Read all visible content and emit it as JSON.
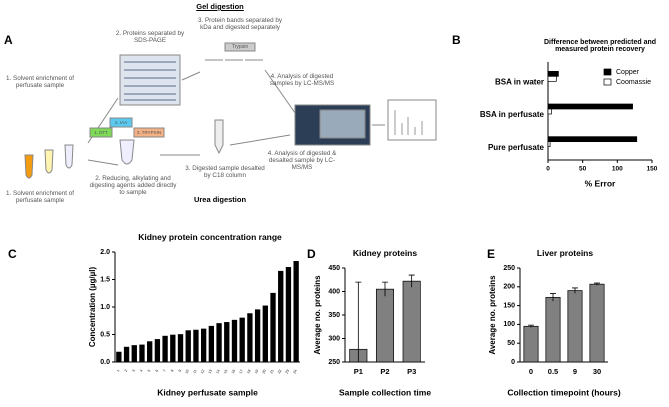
{
  "diagram": {
    "panel": "A",
    "gel_title": "Gel digestion",
    "urea_title": "Urea digestion",
    "gel_step1": "1. Solvent enrichment of perfusate sample",
    "gel_step2": "2. Proteins separated by SDS-PAGE",
    "gel_step3": "3. Protein bands separated by kDa and digested separately",
    "trypsin": "Trypsin",
    "gel_step4": "4. Analysis of digested samples by LC-MS/MS",
    "urea_step1": "1. Solvent enrichment of perfusate sample",
    "urea_step2": "2. Reducing, alkylating and digesting agents added directly to sample",
    "reagents": [
      "1. DTT",
      "2. IAA",
      "3. TRYPSIN"
    ],
    "urea_step3": "3. Digested sample desalted by C18 column",
    "urea_step4": "4. Analysis of digested & desalted sample by LC-MS/MS"
  },
  "chart_data": [
    {
      "type": "hbar",
      "panel": "B",
      "title": "Difference between predicted and measured protein recovery",
      "x_label": "% Error",
      "categories": [
        "BSA in water",
        "BSA in perfusate",
        "Pure perfusate"
      ],
      "series": [
        {
          "name": "Copper",
          "color": "#000000",
          "values": [
            15,
            122,
            128
          ]
        },
        {
          "name": "Coomassie",
          "color": "#ffffff",
          "values": [
            12,
            5,
            3
          ]
        }
      ],
      "xlim": [
        0,
        150
      ],
      "xticks": [
        0,
        50,
        100,
        150
      ],
      "legend": "top-right"
    },
    {
      "type": "bar",
      "panel": "C",
      "title": "Kidney protein concentration range",
      "y_label": "Concentration (µg/µl)",
      "x_label": "Kidney perfusate sample",
      "categories": [
        "1",
        "2",
        "3",
        "4",
        "5",
        "6",
        "7",
        "8",
        "9",
        "10",
        "11",
        "12",
        "13",
        "14",
        "15",
        "16",
        "17",
        "18",
        "19",
        "20",
        "21",
        "22",
        "23",
        "24"
      ],
      "values": [
        0.18,
        0.27,
        0.3,
        0.31,
        0.37,
        0.41,
        0.47,
        0.49,
        0.5,
        0.57,
        0.58,
        0.6,
        0.65,
        0.7,
        0.72,
        0.76,
        0.8,
        0.88,
        0.95,
        1.02,
        1.25,
        1.65,
        1.72,
        1.83
      ],
      "color": "#000000",
      "ylim": [
        0,
        2
      ],
      "yticks": [
        {
          "value": 0,
          "label": "0.0"
        },
        {
          "value": 0.5,
          "label": "0.5"
        },
        {
          "value": 1,
          "label": "1.0"
        },
        {
          "value": 1.5,
          "label": "1.5"
        },
        {
          "value": 2,
          "label": "2.0"
        }
      ]
    },
    {
      "type": "bar",
      "panel": "D",
      "title": "Kidney proteins",
      "y_label": "Average no. proteins",
      "x_label": "Sample collection time",
      "categories": [
        "P1",
        "P2",
        "P3"
      ],
      "values": [
        277,
        405,
        422
      ],
      "errors": [
        143,
        15,
        13
      ],
      "color": "#808080",
      "ylim": [
        250,
        450
      ],
      "yticks": [
        250,
        300,
        350,
        400,
        450
      ]
    },
    {
      "type": "bar",
      "panel": "E",
      "title": "Liver proteins",
      "y_label": "Average no. proteins",
      "x_label": "Collection timepoint (hours)",
      "categories": [
        "0",
        "0.5",
        "9",
        "30"
      ],
      "values": [
        95,
        172,
        190,
        207
      ],
      "errors": [
        3,
        10,
        7,
        3
      ],
      "color": "#808080",
      "ylim": [
        0,
        250
      ],
      "yticks": [
        0,
        50,
        100,
        150,
        200,
        250
      ]
    }
  ]
}
